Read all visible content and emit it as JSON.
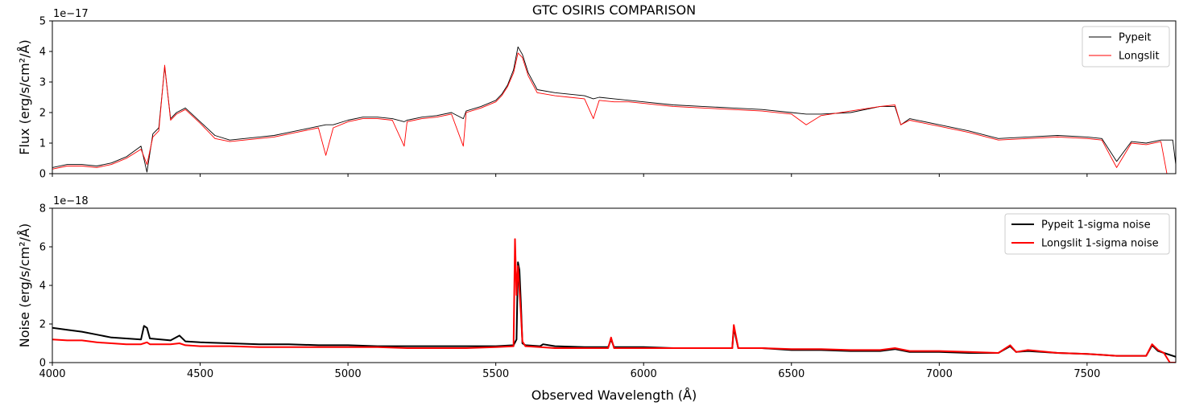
{
  "chart_data": [
    {
      "type": "line",
      "title": "GTC OSIRIS COMPARISON",
      "xlabel": "",
      "ylabel": "Flux (erg/s/cm²/Å)",
      "offset_text": "1e−17",
      "xlim": [
        4000,
        7800
      ],
      "ylim": [
        0,
        5
      ],
      "x_ticks": [
        4000,
        4500,
        5000,
        5500,
        6000,
        6500,
        7000,
        7500
      ],
      "x_tick_labels_shown": false,
      "y_ticks": [
        0,
        1,
        2,
        3,
        4,
        5
      ],
      "grid": false,
      "legend_position": "top-right",
      "series": [
        {
          "name": "Pypeit",
          "color": "#000000",
          "x": [
            4000,
            4050,
            4100,
            4150,
            4200,
            4250,
            4300,
            4320,
            4340,
            4360,
            4380,
            4400,
            4420,
            4450,
            4500,
            4550,
            4600,
            4650,
            4700,
            4750,
            4800,
            4850,
            4900,
            4925,
            4950,
            5000,
            5050,
            5100,
            5150,
            5190,
            5200,
            5250,
            5300,
            5350,
            5390,
            5400,
            5450,
            5500,
            5520,
            5540,
            5560,
            5575,
            5590,
            5610,
            5640,
            5700,
            5750,
            5800,
            5830,
            5850,
            5900,
            5950,
            6000,
            6100,
            6200,
            6300,
            6400,
            6500,
            6550,
            6600,
            6700,
            6800,
            6850,
            6870,
            6900,
            7000,
            7100,
            7200,
            7300,
            7400,
            7500,
            7550,
            7600,
            7650,
            7700,
            7750,
            7790,
            7800
          ],
          "y": [
            0.2,
            0.3,
            0.3,
            0.25,
            0.35,
            0.55,
            0.9,
            0.05,
            1.3,
            1.5,
            3.5,
            1.8,
            2.0,
            2.15,
            1.7,
            1.25,
            1.1,
            1.15,
            1.2,
            1.25,
            1.35,
            1.45,
            1.55,
            1.6,
            1.6,
            1.75,
            1.85,
            1.85,
            1.8,
            1.7,
            1.75,
            1.85,
            1.9,
            2.0,
            1.8,
            2.05,
            2.2,
            2.4,
            2.6,
            2.9,
            3.4,
            4.15,
            3.9,
            3.3,
            2.75,
            2.65,
            2.6,
            2.55,
            2.45,
            2.5,
            2.45,
            2.4,
            2.35,
            2.25,
            2.2,
            2.15,
            2.1,
            2.0,
            1.95,
            1.95,
            2.0,
            2.2,
            2.2,
            1.6,
            1.8,
            1.6,
            1.4,
            1.15,
            1.2,
            1.25,
            1.2,
            1.15,
            0.4,
            1.05,
            1.0,
            1.1,
            1.1,
            0.3
          ]
        },
        {
          "name": "Longslit",
          "color": "#ff0000",
          "x": [
            4000,
            4050,
            4100,
            4150,
            4200,
            4250,
            4300,
            4320,
            4340,
            4360,
            4380,
            4400,
            4420,
            4450,
            4500,
            4550,
            4600,
            4650,
            4700,
            4750,
            4800,
            4850,
            4900,
            4925,
            4950,
            5000,
            5050,
            5100,
            5150,
            5190,
            5200,
            5250,
            5300,
            5350,
            5390,
            5400,
            5450,
            5500,
            5520,
            5540,
            5560,
            5575,
            5590,
            5610,
            5640,
            5700,
            5750,
            5800,
            5830,
            5850,
            5900,
            5950,
            6000,
            6100,
            6200,
            6300,
            6400,
            6500,
            6550,
            6600,
            6700,
            6800,
            6850,
            6870,
            6900,
            7000,
            7100,
            7200,
            7300,
            7400,
            7500,
            7550,
            7600,
            7650,
            7700,
            7750,
            7770,
            7800
          ],
          "y": [
            0.15,
            0.25,
            0.25,
            0.2,
            0.3,
            0.5,
            0.8,
            0.3,
            1.2,
            1.4,
            3.55,
            1.75,
            1.95,
            2.1,
            1.65,
            1.15,
            1.05,
            1.1,
            1.15,
            1.2,
            1.3,
            1.4,
            1.5,
            0.6,
            1.5,
            1.7,
            1.8,
            1.8,
            1.75,
            0.9,
            1.7,
            1.8,
            1.85,
            1.95,
            0.9,
            2.0,
            2.15,
            2.35,
            2.55,
            2.85,
            3.3,
            3.95,
            3.8,
            3.2,
            2.65,
            2.55,
            2.5,
            2.45,
            1.8,
            2.4,
            2.35,
            2.35,
            2.3,
            2.2,
            2.15,
            2.1,
            2.05,
            1.95,
            1.6,
            1.9,
            2.05,
            2.2,
            2.25,
            1.6,
            1.75,
            1.55,
            1.35,
            1.1,
            1.15,
            1.2,
            1.15,
            1.1,
            0.2,
            1.0,
            0.95,
            1.05,
            0.0,
            0.0
          ]
        }
      ]
    },
    {
      "type": "line",
      "title": "",
      "xlabel": "Observed Wavelength (Å)",
      "ylabel": "Noise (erg/s/cm²/Å)",
      "offset_text": "1e−18",
      "xlim": [
        4000,
        7800
      ],
      "ylim": [
        0,
        8
      ],
      "x_ticks": [
        4000,
        4500,
        5000,
        5500,
        6000,
        6500,
        7000,
        7500
      ],
      "y_ticks": [
        0,
        2,
        4,
        6,
        8
      ],
      "grid": false,
      "legend_position": "top-right",
      "series": [
        {
          "name": "Pypeit 1-sigma noise",
          "color": "#000000",
          "x": [
            4000,
            4050,
            4100,
            4150,
            4200,
            4250,
            4300,
            4310,
            4320,
            4330,
            4400,
            4430,
            4450,
            4500,
            4600,
            4700,
            4800,
            4900,
            5000,
            5100,
            5200,
            5300,
            5400,
            5500,
            5560,
            5570,
            5575,
            5580,
            5585,
            5590,
            5600,
            5650,
            5660,
            5700,
            5800,
            5880,
            5890,
            5900,
            6000,
            6100,
            6200,
            6300,
            6305,
            6320,
            6400,
            6500,
            6600,
            6700,
            6800,
            6850,
            6900,
            7000,
            7100,
            7200,
            7240,
            7260,
            7300,
            7400,
            7500,
            7550,
            7600,
            7700,
            7720,
            7740,
            7760,
            7800
          ],
          "y": [
            1.8,
            1.7,
            1.6,
            1.45,
            1.3,
            1.25,
            1.2,
            1.9,
            1.8,
            1.25,
            1.15,
            1.4,
            1.1,
            1.05,
            1.0,
            0.95,
            0.95,
            0.9,
            0.9,
            0.85,
            0.85,
            0.85,
            0.85,
            0.85,
            0.9,
            1.2,
            5.2,
            4.8,
            3.0,
            1.0,
            0.9,
            0.85,
            0.95,
            0.85,
            0.8,
            0.8,
            1.2,
            0.8,
            0.8,
            0.75,
            0.75,
            0.75,
            1.8,
            0.75,
            0.75,
            0.65,
            0.65,
            0.6,
            0.6,
            0.7,
            0.55,
            0.55,
            0.5,
            0.5,
            0.85,
            0.55,
            0.6,
            0.5,
            0.45,
            0.4,
            0.35,
            0.35,
            0.9,
            0.6,
            0.5,
            0.3
          ]
        },
        {
          "name": "Longslit 1-sigma noise",
          "color": "#ff0000",
          "x": [
            4000,
            4050,
            4100,
            4150,
            4200,
            4250,
            4300,
            4310,
            4320,
            4330,
            4400,
            4430,
            4450,
            4500,
            4600,
            4700,
            4800,
            4900,
            5000,
            5100,
            5200,
            5300,
            5400,
            5500,
            5560,
            5565,
            5570,
            5575,
            5580,
            5585,
            5590,
            5600,
            5650,
            5700,
            5800,
            5880,
            5890,
            5900,
            6000,
            6100,
            6200,
            6300,
            6305,
            6320,
            6400,
            6500,
            6600,
            6700,
            6800,
            6850,
            6900,
            7000,
            7100,
            7200,
            7240,
            7260,
            7300,
            7400,
            7500,
            7550,
            7600,
            7700,
            7720,
            7740,
            7760,
            7780,
            7800
          ],
          "y": [
            1.2,
            1.15,
            1.15,
            1.05,
            1.0,
            0.95,
            0.95,
            1.0,
            1.05,
            0.95,
            0.95,
            1.0,
            0.9,
            0.85,
            0.85,
            0.8,
            0.8,
            0.8,
            0.8,
            0.8,
            0.75,
            0.75,
            0.75,
            0.8,
            0.85,
            6.4,
            3.5,
            5.0,
            3.8,
            2.5,
            1.1,
            0.85,
            0.8,
            0.75,
            0.75,
            0.75,
            1.3,
            0.75,
            0.75,
            0.75,
            0.75,
            0.75,
            1.95,
            0.75,
            0.75,
            0.7,
            0.7,
            0.65,
            0.65,
            0.75,
            0.6,
            0.6,
            0.55,
            0.5,
            0.9,
            0.55,
            0.65,
            0.5,
            0.45,
            0.4,
            0.35,
            0.35,
            0.95,
            0.65,
            0.5,
            0.0,
            0.0
          ]
        }
      ]
    }
  ]
}
